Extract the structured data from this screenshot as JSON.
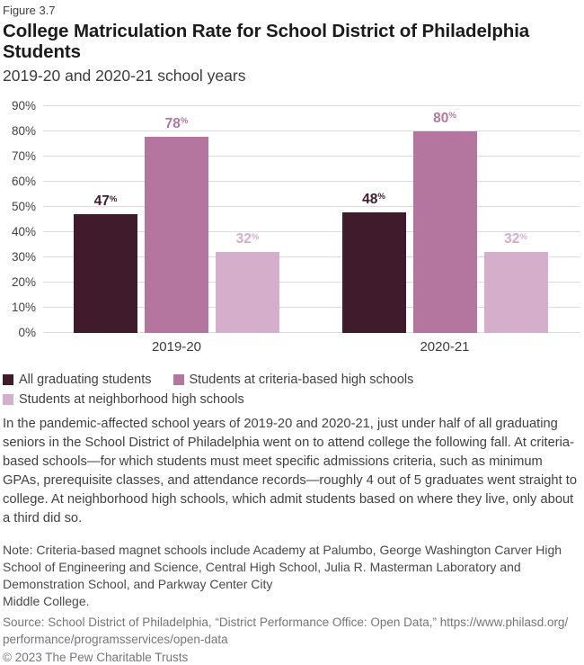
{
  "figure_label": "Figure 3.7",
  "title": "College Matriculation Rate for School District of Philadelphia Students",
  "subtitle": "2019-20 and 2020-21 school years",
  "chart_data": {
    "type": "bar",
    "categories": [
      "2019-20",
      "2020-21"
    ],
    "series": [
      {
        "name": "All graduating students",
        "color": "#401b2c",
        "values": [
          47,
          48
        ]
      },
      {
        "name": "Students at criteria-based high schools",
        "color": "#b4769f",
        "values": [
          78,
          80
        ]
      },
      {
        "name": "Students at neighborhood high schools",
        "color": "#d4aeca",
        "values": [
          32,
          32
        ]
      }
    ],
    "value_suffix": "%",
    "ylim": [
      0,
      90
    ],
    "ytick_step": 10,
    "ytick_suffix": "%",
    "grid": true,
    "gridline_color": "#dcdcdc",
    "legend_position": "bottom",
    "title": "College Matriculation Rate for School District of Philadelphia Students",
    "xlabel": "",
    "ylabel": ""
  },
  "body_text": "In the pandemic-affected school years of 2019-20 and 2020-21, just under half of all graduating seniors in the School District of Philadelphia went on to attend college the following fall. At criteria-based schools—for which students must meet specific admissions criteria, such as minimum GPAs, prerequisite classes, and attendance records—roughly 4 out of 5 graduates went straight to college. At neighborhood high schools, which admit students based on where they live, only about a third did so.",
  "note_text": "Note: Criteria-based magnet schools include Academy at Palumbo, George Washington Carver High School of Engineering and Science, Central High School, Julia R. Masterman Laboratory and Demonstration School, and Parkway Center City\nMiddle College.",
  "source_text": "Source: School District of Philadelphia, “District Performance Office: Open Data,” https://www.philasd.org/\nperformance/programsservices/open-data",
  "copyright_text": "© 2023 The Pew Charitable Trusts"
}
